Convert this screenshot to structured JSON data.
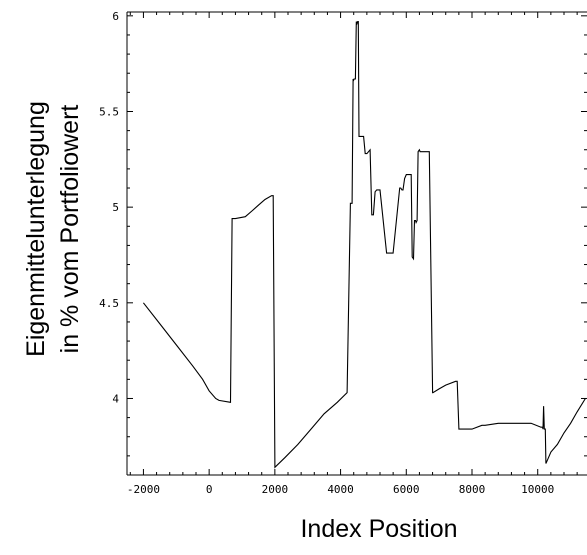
{
  "chart_data": {
    "type": "line",
    "title": "",
    "xlabel": "Index Position",
    "ylabel_lines": [
      "Eigenmittelunterlegung",
      "in % vom Portfoliowert"
    ],
    "xlim": [
      -2500,
      11500
    ],
    "ylim": [
      3.6,
      6.02
    ],
    "xticks": [
      -2000,
      0,
      2000,
      4000,
      6000,
      8000,
      10000
    ],
    "xtick_labels": [
      "-2000",
      "0",
      "2000",
      "4000",
      "6000",
      "8000",
      "10000"
    ],
    "yticks": [
      4,
      4.5,
      5,
      5.5,
      6
    ],
    "ytick_labels": [
      "4",
      "4.5",
      "5",
      "5.5",
      "6"
    ],
    "grid": false,
    "series": [
      {
        "name": "",
        "x": [
          -2000,
          -1500,
          -1000,
          -500,
          -200,
          0,
          200,
          300,
          650,
          700,
          800,
          1100,
          1300,
          1500,
          1700,
          1900,
          1950,
          2000,
          2300,
          2700,
          3100,
          3500,
          3900,
          4200,
          4300,
          4350,
          4380,
          4390,
          4410,
          4450,
          4480,
          4500,
          4520,
          4540,
          4560,
          4580,
          4600,
          4650,
          4700,
          4750,
          4800,
          4900,
          4950,
          5000,
          5050,
          5100,
          5150,
          5200,
          5400,
          5450,
          5500,
          5600,
          5800,
          5830,
          5870,
          5900,
          5950,
          6000,
          6150,
          6180,
          6220,
          6250,
          6280,
          6300,
          6330,
          6360,
          6400,
          6420,
          6450,
          6500,
          6600,
          6700,
          6800,
          6810,
          7000,
          7200,
          7500,
          7550,
          7600,
          7900,
          8000,
          8300,
          8400,
          8800,
          9500,
          9800,
          10100,
          10150,
          10160,
          10180,
          10200,
          10230,
          10250,
          10300,
          10400,
          10600,
          10800,
          11000,
          11200,
          11450
        ],
        "y": [
          4.5,
          4.39,
          4.28,
          4.17,
          4.1,
          4.04,
          4.0,
          3.99,
          3.98,
          4.94,
          4.94,
          4.95,
          4.98,
          5.01,
          5.04,
          5.06,
          5.06,
          3.64,
          3.69,
          3.76,
          3.84,
          3.92,
          3.98,
          4.03,
          5.02,
          5.02,
          5.67,
          5.66,
          5.67,
          5.67,
          5.97,
          5.96,
          5.97,
          5.97,
          5.37,
          5.37,
          5.37,
          5.37,
          5.37,
          5.28,
          5.28,
          5.3,
          4.96,
          4.96,
          5.08,
          5.09,
          5.09,
          5.09,
          4.76,
          4.76,
          4.76,
          4.76,
          5.1,
          5.1,
          5.09,
          5.09,
          5.15,
          5.17,
          5.17,
          4.74,
          4.73,
          4.93,
          4.93,
          4.92,
          4.93,
          5.29,
          5.3,
          5.29,
          5.29,
          5.29,
          5.29,
          5.29,
          4.03,
          4.03,
          4.05,
          4.07,
          4.09,
          4.09,
          3.84,
          3.84,
          3.84,
          3.86,
          3.86,
          3.87,
          3.87,
          3.87,
          3.85,
          3.85,
          3.84,
          3.96,
          3.84,
          3.84,
          3.66,
          3.68,
          3.72,
          3.76,
          3.82,
          3.87,
          3.93,
          4.0
        ]
      }
    ]
  }
}
